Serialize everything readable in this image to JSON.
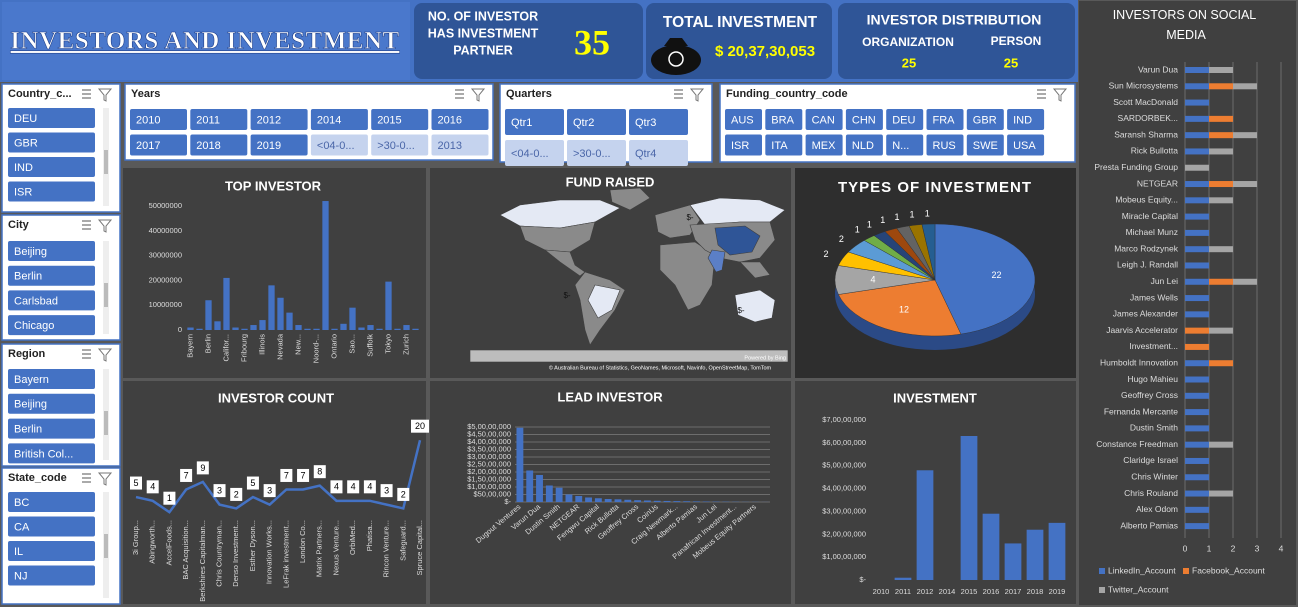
{
  "header": {
    "title": "INVESTORS AND INVESTMENT"
  },
  "kpis": {
    "partners": {
      "label_lines": [
        "NO. OF INVESTOR",
        "HAS INVESTMENT",
        "PARTNER"
      ],
      "value": 35
    },
    "total": {
      "label": "TOTAL INVESTMENT",
      "value": "$ 20,37,30,053"
    },
    "distribution": {
      "label": "INVESTOR DISTRIBUTION",
      "groups": [
        {
          "label": "ORGANIZATION",
          "value": 25
        },
        {
          "label": "PERSON",
          "value": 25
        }
      ]
    }
  },
  "slicers": [
    {
      "title": "Country_c...",
      "items": [
        {
          "label": "DEU",
          "selected": true
        },
        {
          "label": "GBR",
          "selected": true
        },
        {
          "label": "IND",
          "selected": true
        },
        {
          "label": "ISR",
          "selected": true
        }
      ]
    },
    {
      "title": "City",
      "items": [
        {
          "label": "Beijing",
          "selected": true
        },
        {
          "label": "Berlin",
          "selected": true
        },
        {
          "label": "Carlsbad",
          "selected": true
        },
        {
          "label": "Chicago",
          "selected": true
        }
      ]
    },
    {
      "title": "Region",
      "items": [
        {
          "label": "Bayern",
          "selected": true
        },
        {
          "label": "Beijing",
          "selected": true
        },
        {
          "label": "Berlin",
          "selected": true
        },
        {
          "label": "British Col...",
          "selected": true
        }
      ]
    },
    {
      "title": "State_code",
      "items": [
        {
          "label": "BC",
          "selected": true
        },
        {
          "label": "CA",
          "selected": true
        },
        {
          "label": "IL",
          "selected": true
        },
        {
          "label": "NJ",
          "selected": true
        }
      ]
    },
    {
      "title": "Years",
      "items": [
        {
          "label": "2010",
          "selected": true
        },
        {
          "label": "2011",
          "selected": true
        },
        {
          "label": "2012",
          "selected": true
        },
        {
          "label": "2014",
          "selected": true
        },
        {
          "label": "2015",
          "selected": true
        },
        {
          "label": "2016",
          "selected": true
        },
        {
          "label": "2017",
          "selected": true
        },
        {
          "label": "2018",
          "selected": true
        },
        {
          "label": "2019",
          "selected": true
        },
        {
          "label": "<04-0...",
          "selected": false
        },
        {
          "label": ">30-0...",
          "selected": false
        },
        {
          "label": "2013",
          "selected": false
        }
      ]
    },
    {
      "title": "Quarters",
      "items": [
        {
          "label": "Qtr1",
          "selected": true
        },
        {
          "label": "Qtr2",
          "selected": true
        },
        {
          "label": "Qtr3",
          "selected": true
        },
        {
          "label": "<04-0...",
          "selected": false
        },
        {
          "label": ">30-0...",
          "selected": false
        },
        {
          "label": "Qtr4",
          "selected": false
        }
      ]
    },
    {
      "title": "Funding_country_code",
      "items": [
        {
          "label": "AUS",
          "selected": true
        },
        {
          "label": "BRA",
          "selected": true
        },
        {
          "label": "CAN",
          "selected": true
        },
        {
          "label": "CHN",
          "selected": true
        },
        {
          "label": "DEU",
          "selected": true
        },
        {
          "label": "FRA",
          "selected": true
        },
        {
          "label": "GBR",
          "selected": true
        },
        {
          "label": "IND",
          "selected": true
        },
        {
          "label": "ISR",
          "selected": true
        },
        {
          "label": "ITA",
          "selected": true
        },
        {
          "label": "MEX",
          "selected": true
        },
        {
          "label": "NLD",
          "selected": true
        },
        {
          "label": "N...",
          "selected": true
        },
        {
          "label": "RUS",
          "selected": true
        },
        {
          "label": "SWE",
          "selected": true
        },
        {
          "label": "USA",
          "selected": true
        }
      ]
    }
  ],
  "chart_data": [
    {
      "type": "bar",
      "title": "TOP INVESTOR",
      "categories": [
        "Bayern",
        null,
        "Berlin",
        null,
        "Califor...",
        null,
        "Fribourg",
        null,
        "Illinois",
        null,
        "Nevada",
        null,
        "New...",
        null,
        "Noord-...",
        null,
        "Ontario",
        null,
        "Sao...",
        null,
        "Suffolk",
        null,
        "Tokyo",
        null,
        "Zurich",
        null
      ],
      "values": [
        1000000,
        500000,
        12000000,
        3500000,
        21000000,
        1000000,
        500000,
        2000000,
        4000000,
        18000000,
        13000000,
        7000000,
        2000000,
        500000,
        500000,
        52000000,
        500000,
        2500000,
        9000000,
        1000000,
        2000000,
        500000,
        19500000,
        500000,
        2000000,
        500000
      ],
      "color": "#4472c4",
      "ylim": [
        0,
        55000000
      ],
      "yticks": [
        0,
        10000000,
        20000000,
        30000000,
        40000000,
        50000000
      ],
      "grid": false
    },
    {
      "type": "map",
      "title": "FUND RAISED",
      "labels": [
        "$-",
        "$-",
        "$-"
      ],
      "credits": [
        "Powered by Bing",
        "© Australian Bureau of Statistics, GeoNames, Microsoft, Navinfo, OpenStreetMap, TomTom"
      ]
    },
    {
      "type": "pie",
      "title": "TYPES OF INVESTMENT",
      "values": [
        22,
        12,
        4,
        2,
        2,
        1,
        1,
        1,
        1,
        1,
        1
      ],
      "colors": [
        "#4472c4",
        "#ed7d31",
        "#a5a5a5",
        "#ffc000",
        "#5b9bd5",
        "#70ad47",
        "#264478",
        "#9e480e",
        "#636363",
        "#997300",
        "#255e91"
      ]
    },
    {
      "type": "line",
      "title": "INVESTOR COUNT",
      "categories": [
        "3i Group...",
        "Abingworth...",
        "AccelFoods...",
        "BAC Acquisition...",
        "Berkshires Capitalman...",
        "Chris Countryman...",
        "Denso Investment...",
        "Esther Dyson...",
        "Innovation Works...",
        "LeFrak investment...",
        "London Co...",
        "Matrix Partners...",
        "Nexus Venture...",
        "OrbiMed...",
        "Phatisa...",
        "Rincon Venture...",
        "Safeguard...",
        "Spruce Capital..."
      ],
      "values": [
        5,
        4,
        1,
        7,
        9,
        3,
        2,
        5,
        3,
        7,
        7,
        8,
        4,
        4,
        4,
        3,
        2,
        20
      ],
      "color": "#4472c4",
      "ylim": [
        0,
        22
      ]
    },
    {
      "type": "bar",
      "title": "LEAD INVESTOR",
      "categories": [
        "Dugout Ventures",
        null,
        "Varun Dua",
        null,
        "Dustin Smith",
        null,
        "NETGEAR",
        null,
        "Fengwu Capital",
        null,
        "Rick Bullotta",
        null,
        "Geoffrey Cross",
        null,
        "CoinUs",
        null,
        "Craig Newmark...",
        null,
        "Alberto Pamias",
        null,
        "Jun Lei",
        null,
        "Panafrican Investment...",
        null,
        "Mobeus Equity Partners",
        null
      ],
      "values": [
        49500000,
        21000000,
        18000000,
        11000000,
        9500000,
        5000000,
        4000000,
        3000000,
        2500000,
        2000000,
        1800000,
        1500000,
        1200000,
        1000000,
        800000,
        700000,
        600000,
        500000,
        400000,
        300000,
        250000,
        200000,
        150000,
        100000,
        100000,
        50000
      ],
      "color": "#4472c4",
      "ylim": [
        0,
        50000000
      ],
      "yticks": [
        {
          "value": 0,
          "label": "$-"
        },
        {
          "value": 5000000,
          "label": "$50,00,000"
        },
        {
          "value": 10000000,
          "label": "$1,00,00,000"
        },
        {
          "value": 15000000,
          "label": "$1,50,00,000"
        },
        {
          "value": 20000000,
          "label": "$2,00,00,000"
        },
        {
          "value": 25000000,
          "label": "$2,50,00,000"
        },
        {
          "value": 30000000,
          "label": "$3,00,00,000"
        },
        {
          "value": 35000000,
          "label": "$3,50,00,000"
        },
        {
          "value": 40000000,
          "label": "$4,00,00,000"
        },
        {
          "value": 45000000,
          "label": "$4,50,00,000"
        },
        {
          "value": 50000000,
          "label": "$5,00,00,000"
        }
      ],
      "grid": true
    },
    {
      "type": "bar",
      "title": "INVESTMENT",
      "categories": [
        "2010",
        "2011",
        "2012",
        "2014",
        "2015",
        "2016",
        "2017",
        "2018",
        "2019"
      ],
      "values": [
        0,
        1000000,
        48000000,
        0,
        63000000,
        29000000,
        16000000,
        22000000,
        25000000
      ],
      "color": "#4472c4",
      "ylim": [
        0,
        70000000
      ],
      "yticks": [
        {
          "value": 0,
          "label": "$-"
        },
        {
          "value": 10000000,
          "label": "$1,00,00,000"
        },
        {
          "value": 20000000,
          "label": "$2,00,00,000"
        },
        {
          "value": 30000000,
          "label": "$3,00,00,000"
        },
        {
          "value": 40000000,
          "label": "$4,00,00,000"
        },
        {
          "value": 50000000,
          "label": "$5,00,00,000"
        },
        {
          "value": 60000000,
          "label": "$6,00,00,000"
        },
        {
          "value": 70000000,
          "label": "$7,00,00,000"
        }
      ],
      "grid": false
    },
    {
      "type": "hbar",
      "title": "INVESTORS ON SOCIAL MEDIA",
      "categories": [
        "Varun Dua",
        "Sun Microsystems",
        "Scott MacDonald",
        "SARDORBEK...",
        "Saransh Sharma",
        "Rick Bullotta",
        "Presta Funding Group",
        "NETGEAR",
        "Mobeus Equity...",
        "Miracle Capital",
        "Michael Munz",
        "Marco Rodzynek",
        "Leigh J. Randall",
        "Jun Lei",
        "James Wells",
        "James Alexander",
        "Jaarvis Accelerator",
        "Investment...",
        "Humboldt Innovation",
        "Hugo Mahieu",
        "Geoffrey Cross",
        "Fernanda Mercante",
        "Dustin Smith",
        "Constance Freedman",
        "Claridge Israel",
        "Chris Winter",
        "Chris Rouland",
        "Alex Odom",
        "Alberto Pamias"
      ],
      "series": [
        {
          "name": "LinkedIn_Account",
          "color": "#4472c4",
          "values": [
            1,
            1,
            1,
            1,
            1,
            1,
            0,
            1,
            1,
            1,
            1,
            1,
            1,
            1,
            1,
            1,
            0,
            0,
            1,
            1,
            1,
            1,
            1,
            1,
            1,
            1,
            1,
            1,
            1
          ]
        },
        {
          "name": "Facebook_Account",
          "color": "#ed7d31",
          "values": [
            0,
            1,
            0,
            1,
            1,
            0,
            0,
            1,
            0,
            0,
            0,
            0,
            0,
            1,
            0,
            0,
            1,
            1,
            1,
            0,
            0,
            0,
            0,
            0,
            0,
            0,
            0,
            0,
            0
          ]
        },
        {
          "name": "Twitter_Account",
          "color": "#a5a5a5",
          "values": [
            1,
            1,
            0,
            0,
            1,
            1,
            1,
            1,
            1,
            0,
            0,
            1,
            0,
            1,
            0,
            0,
            1,
            0,
            0,
            0,
            0,
            0,
            0,
            1,
            0,
            0,
            1,
            0,
            0
          ]
        }
      ],
      "xlim": [
        0,
        4
      ],
      "xticks": [
        0,
        1,
        2,
        3,
        4
      ],
      "grid": true,
      "stacked": true
    }
  ]
}
